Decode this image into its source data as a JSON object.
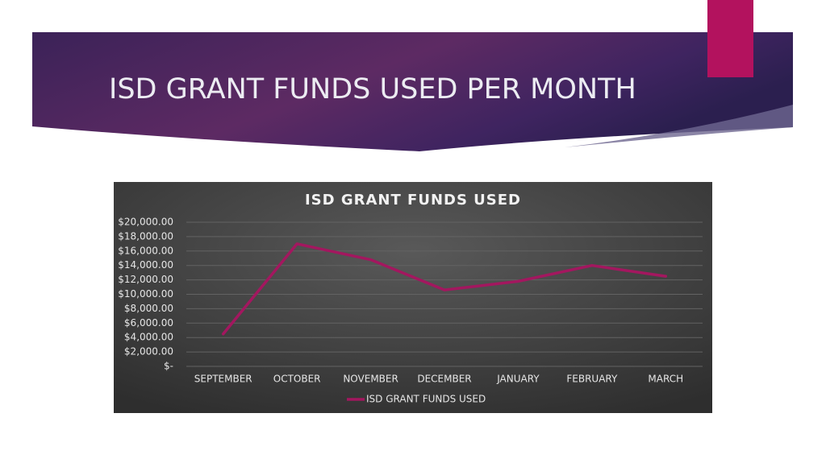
{
  "slide": {
    "title": "ISD GRANT FUNDS USED PER MONTH"
  },
  "chart_data": {
    "type": "line",
    "title": "ISD GRANT FUNDS USED",
    "categories": [
      "SEPTEMBER",
      "OCTOBER",
      "NOVEMBER",
      "DECEMBER",
      "JANUARY",
      "FEBRUARY",
      "MARCH"
    ],
    "series": [
      {
        "name": "ISD GRANT FUNDS USED",
        "color": "#a3175f",
        "values": [
          4500,
          17000,
          14800,
          10600,
          11800,
          14000,
          12500
        ]
      }
    ],
    "ylim": [
      0,
      20000
    ],
    "yticks": [
      {
        "value": 0,
        "label": "$-"
      },
      {
        "value": 2000,
        "label": "$2,000.00"
      },
      {
        "value": 4000,
        "label": "$4,000.00"
      },
      {
        "value": 6000,
        "label": "$6,000.00"
      },
      {
        "value": 8000,
        "label": "$8,000.00"
      },
      {
        "value": 10000,
        "label": "$10,000.00"
      },
      {
        "value": 12000,
        "label": "$12,000.00"
      },
      {
        "value": 14000,
        "label": "$14,000.00"
      },
      {
        "value": 16000,
        "label": "$16,000.00"
      },
      {
        "value": 18000,
        "label": "$18,000.00"
      },
      {
        "value": 20000,
        "label": "$20,000.00"
      }
    ],
    "grid": true,
    "legend": "bottom"
  }
}
